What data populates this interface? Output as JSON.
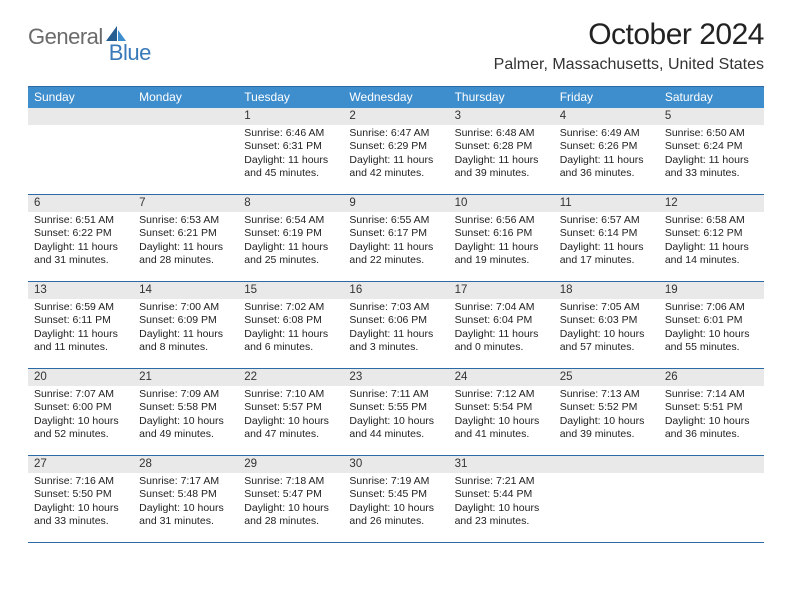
{
  "logo": {
    "part1": "General",
    "part2": "Blue"
  },
  "title": "October 2024",
  "location": "Palmer, Massachusetts, United States",
  "colors": {
    "header_bg": "#3e8dcc",
    "rule": "#2b6aa3",
    "daynum_bg": "#e9e9e9",
    "logo_gray": "#6b6b6b",
    "logo_blue": "#3a7ab8",
    "text": "#222222"
  },
  "day_names": [
    "Sunday",
    "Monday",
    "Tuesday",
    "Wednesday",
    "Thursday",
    "Friday",
    "Saturday"
  ],
  "weeks": [
    [
      {
        "n": "",
        "sr": "",
        "ss": "",
        "dl": ""
      },
      {
        "n": "",
        "sr": "",
        "ss": "",
        "dl": ""
      },
      {
        "n": "1",
        "sr": "Sunrise: 6:46 AM",
        "ss": "Sunset: 6:31 PM",
        "dl": "Daylight: 11 hours and 45 minutes."
      },
      {
        "n": "2",
        "sr": "Sunrise: 6:47 AM",
        "ss": "Sunset: 6:29 PM",
        "dl": "Daylight: 11 hours and 42 minutes."
      },
      {
        "n": "3",
        "sr": "Sunrise: 6:48 AM",
        "ss": "Sunset: 6:28 PM",
        "dl": "Daylight: 11 hours and 39 minutes."
      },
      {
        "n": "4",
        "sr": "Sunrise: 6:49 AM",
        "ss": "Sunset: 6:26 PM",
        "dl": "Daylight: 11 hours and 36 minutes."
      },
      {
        "n": "5",
        "sr": "Sunrise: 6:50 AM",
        "ss": "Sunset: 6:24 PM",
        "dl": "Daylight: 11 hours and 33 minutes."
      }
    ],
    [
      {
        "n": "6",
        "sr": "Sunrise: 6:51 AM",
        "ss": "Sunset: 6:22 PM",
        "dl": "Daylight: 11 hours and 31 minutes."
      },
      {
        "n": "7",
        "sr": "Sunrise: 6:53 AM",
        "ss": "Sunset: 6:21 PM",
        "dl": "Daylight: 11 hours and 28 minutes."
      },
      {
        "n": "8",
        "sr": "Sunrise: 6:54 AM",
        "ss": "Sunset: 6:19 PM",
        "dl": "Daylight: 11 hours and 25 minutes."
      },
      {
        "n": "9",
        "sr": "Sunrise: 6:55 AM",
        "ss": "Sunset: 6:17 PM",
        "dl": "Daylight: 11 hours and 22 minutes."
      },
      {
        "n": "10",
        "sr": "Sunrise: 6:56 AM",
        "ss": "Sunset: 6:16 PM",
        "dl": "Daylight: 11 hours and 19 minutes."
      },
      {
        "n": "11",
        "sr": "Sunrise: 6:57 AM",
        "ss": "Sunset: 6:14 PM",
        "dl": "Daylight: 11 hours and 17 minutes."
      },
      {
        "n": "12",
        "sr": "Sunrise: 6:58 AM",
        "ss": "Sunset: 6:12 PM",
        "dl": "Daylight: 11 hours and 14 minutes."
      }
    ],
    [
      {
        "n": "13",
        "sr": "Sunrise: 6:59 AM",
        "ss": "Sunset: 6:11 PM",
        "dl": "Daylight: 11 hours and 11 minutes."
      },
      {
        "n": "14",
        "sr": "Sunrise: 7:00 AM",
        "ss": "Sunset: 6:09 PM",
        "dl": "Daylight: 11 hours and 8 minutes."
      },
      {
        "n": "15",
        "sr": "Sunrise: 7:02 AM",
        "ss": "Sunset: 6:08 PM",
        "dl": "Daylight: 11 hours and 6 minutes."
      },
      {
        "n": "16",
        "sr": "Sunrise: 7:03 AM",
        "ss": "Sunset: 6:06 PM",
        "dl": "Daylight: 11 hours and 3 minutes."
      },
      {
        "n": "17",
        "sr": "Sunrise: 7:04 AM",
        "ss": "Sunset: 6:04 PM",
        "dl": "Daylight: 11 hours and 0 minutes."
      },
      {
        "n": "18",
        "sr": "Sunrise: 7:05 AM",
        "ss": "Sunset: 6:03 PM",
        "dl": "Daylight: 10 hours and 57 minutes."
      },
      {
        "n": "19",
        "sr": "Sunrise: 7:06 AM",
        "ss": "Sunset: 6:01 PM",
        "dl": "Daylight: 10 hours and 55 minutes."
      }
    ],
    [
      {
        "n": "20",
        "sr": "Sunrise: 7:07 AM",
        "ss": "Sunset: 6:00 PM",
        "dl": "Daylight: 10 hours and 52 minutes."
      },
      {
        "n": "21",
        "sr": "Sunrise: 7:09 AM",
        "ss": "Sunset: 5:58 PM",
        "dl": "Daylight: 10 hours and 49 minutes."
      },
      {
        "n": "22",
        "sr": "Sunrise: 7:10 AM",
        "ss": "Sunset: 5:57 PM",
        "dl": "Daylight: 10 hours and 47 minutes."
      },
      {
        "n": "23",
        "sr": "Sunrise: 7:11 AM",
        "ss": "Sunset: 5:55 PM",
        "dl": "Daylight: 10 hours and 44 minutes."
      },
      {
        "n": "24",
        "sr": "Sunrise: 7:12 AM",
        "ss": "Sunset: 5:54 PM",
        "dl": "Daylight: 10 hours and 41 minutes."
      },
      {
        "n": "25",
        "sr": "Sunrise: 7:13 AM",
        "ss": "Sunset: 5:52 PM",
        "dl": "Daylight: 10 hours and 39 minutes."
      },
      {
        "n": "26",
        "sr": "Sunrise: 7:14 AM",
        "ss": "Sunset: 5:51 PM",
        "dl": "Daylight: 10 hours and 36 minutes."
      }
    ],
    [
      {
        "n": "27",
        "sr": "Sunrise: 7:16 AM",
        "ss": "Sunset: 5:50 PM",
        "dl": "Daylight: 10 hours and 33 minutes."
      },
      {
        "n": "28",
        "sr": "Sunrise: 7:17 AM",
        "ss": "Sunset: 5:48 PM",
        "dl": "Daylight: 10 hours and 31 minutes."
      },
      {
        "n": "29",
        "sr": "Sunrise: 7:18 AM",
        "ss": "Sunset: 5:47 PM",
        "dl": "Daylight: 10 hours and 28 minutes."
      },
      {
        "n": "30",
        "sr": "Sunrise: 7:19 AM",
        "ss": "Sunset: 5:45 PM",
        "dl": "Daylight: 10 hours and 26 minutes."
      },
      {
        "n": "31",
        "sr": "Sunrise: 7:21 AM",
        "ss": "Sunset: 5:44 PM",
        "dl": "Daylight: 10 hours and 23 minutes."
      },
      {
        "n": "",
        "sr": "",
        "ss": "",
        "dl": ""
      },
      {
        "n": "",
        "sr": "",
        "ss": "",
        "dl": ""
      }
    ]
  ]
}
